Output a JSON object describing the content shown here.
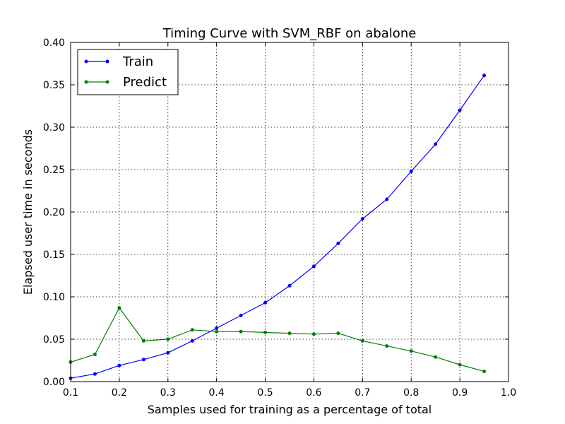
{
  "chart_data": {
    "type": "line",
    "title": "Timing Curve with SVM_RBF on abalone",
    "xlabel": "Samples used for training as a percentage of total",
    "ylabel": "Elapsed user time in seconds",
    "xlim": [
      0.1,
      1.0
    ],
    "ylim": [
      0.0,
      0.4
    ],
    "x_ticks": [
      "0.1",
      "0.2",
      "0.3",
      "0.4",
      "0.5",
      "0.6",
      "0.7",
      "0.8",
      "0.9",
      "1.0"
    ],
    "y_ticks": [
      "0.00",
      "0.05",
      "0.10",
      "0.15",
      "0.20",
      "0.25",
      "0.30",
      "0.35",
      "0.40"
    ],
    "grid": true,
    "legend_position": "top-left",
    "x": [
      0.1,
      0.15,
      0.2,
      0.25,
      0.3,
      0.35,
      0.4,
      0.45,
      0.5,
      0.55,
      0.6,
      0.65,
      0.7,
      0.75,
      0.8,
      0.85,
      0.9,
      0.95
    ],
    "series": [
      {
        "name": "Train",
        "color": "#0000ff",
        "values": [
          0.004,
          0.009,
          0.019,
          0.026,
          0.034,
          0.048,
          0.063,
          0.078,
          0.093,
          0.113,
          0.136,
          0.163,
          0.192,
          0.215,
          0.248,
          0.28,
          0.32,
          0.361
        ]
      },
      {
        "name": "Predict",
        "color": "#008000",
        "values": [
          0.023,
          0.032,
          0.087,
          0.048,
          0.05,
          0.061,
          0.059,
          0.059,
          0.058,
          0.057,
          0.056,
          0.057,
          0.048,
          0.042,
          0.036,
          0.029,
          0.02,
          0.012
        ]
      }
    ]
  }
}
